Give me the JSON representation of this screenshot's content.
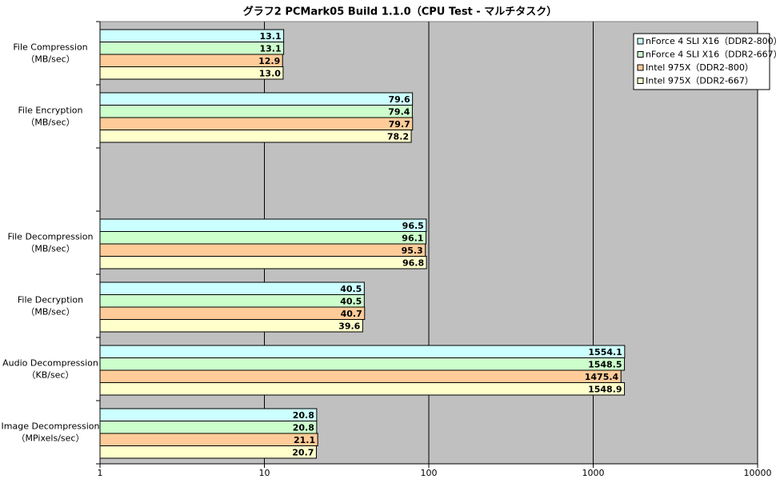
{
  "chart_data": {
    "type": "bar",
    "orientation": "horizontal",
    "title": "グラフ2  PCMark05 Build 1.1.0（CPU Test - マルチタスク）",
    "categories": [
      [
        "File Compression",
        "（MB/sec）"
      ],
      [
        "File Encryption",
        "（MB/sec）"
      ],
      null,
      [
        "File Decompression",
        "（MB/sec）"
      ],
      [
        "File Decryption",
        "（MB/sec）"
      ],
      [
        "Audio Decompression",
        "（KB/sec）"
      ],
      [
        "Image Decompression",
        "（MPixels/sec）"
      ]
    ],
    "series": [
      {
        "name": "nForce 4 SLI X16（DDR2-800）",
        "color": "#ccffff",
        "values": [
          13.1,
          79.6,
          null,
          96.5,
          40.5,
          1554.1,
          20.8
        ],
        "value_labels": [
          "13.1",
          "79.6",
          null,
          "96.5",
          "40.5",
          "1554.1",
          "20.8"
        ]
      },
      {
        "name": "nForce 4 SLI X16（DDR2-667）",
        "color": "#ccffcc",
        "values": [
          13.1,
          79.4,
          null,
          96.1,
          40.5,
          1548.5,
          20.8
        ],
        "value_labels": [
          "13.1",
          "79.4",
          null,
          "96.1",
          "40.5",
          "1548.5",
          "20.8"
        ]
      },
      {
        "name": "Intel 975X（DDR2-800）",
        "color": "#ffcc99",
        "values": [
          12.9,
          79.7,
          null,
          95.3,
          40.7,
          1475.4,
          21.1
        ],
        "value_labels": [
          "12.9",
          "79.7",
          null,
          "95.3",
          "40.7",
          "1475.4",
          "21.1"
        ]
      },
      {
        "name": "Intel 975X（DDR2-667）",
        "color": "#ffffcc",
        "values": [
          13.0,
          78.2,
          null,
          96.8,
          39.6,
          1548.9,
          20.7
        ],
        "value_labels": [
          "13.0",
          "78.2",
          null,
          "96.8",
          "39.6",
          "1548.9",
          "20.7"
        ]
      }
    ],
    "xlim": [
      1,
      10000
    ],
    "xticks": [
      1,
      10,
      100,
      1000,
      10000
    ],
    "log_x": true,
    "grid": true,
    "legend": "top-right",
    "plot_background": "#c0c0c0"
  }
}
